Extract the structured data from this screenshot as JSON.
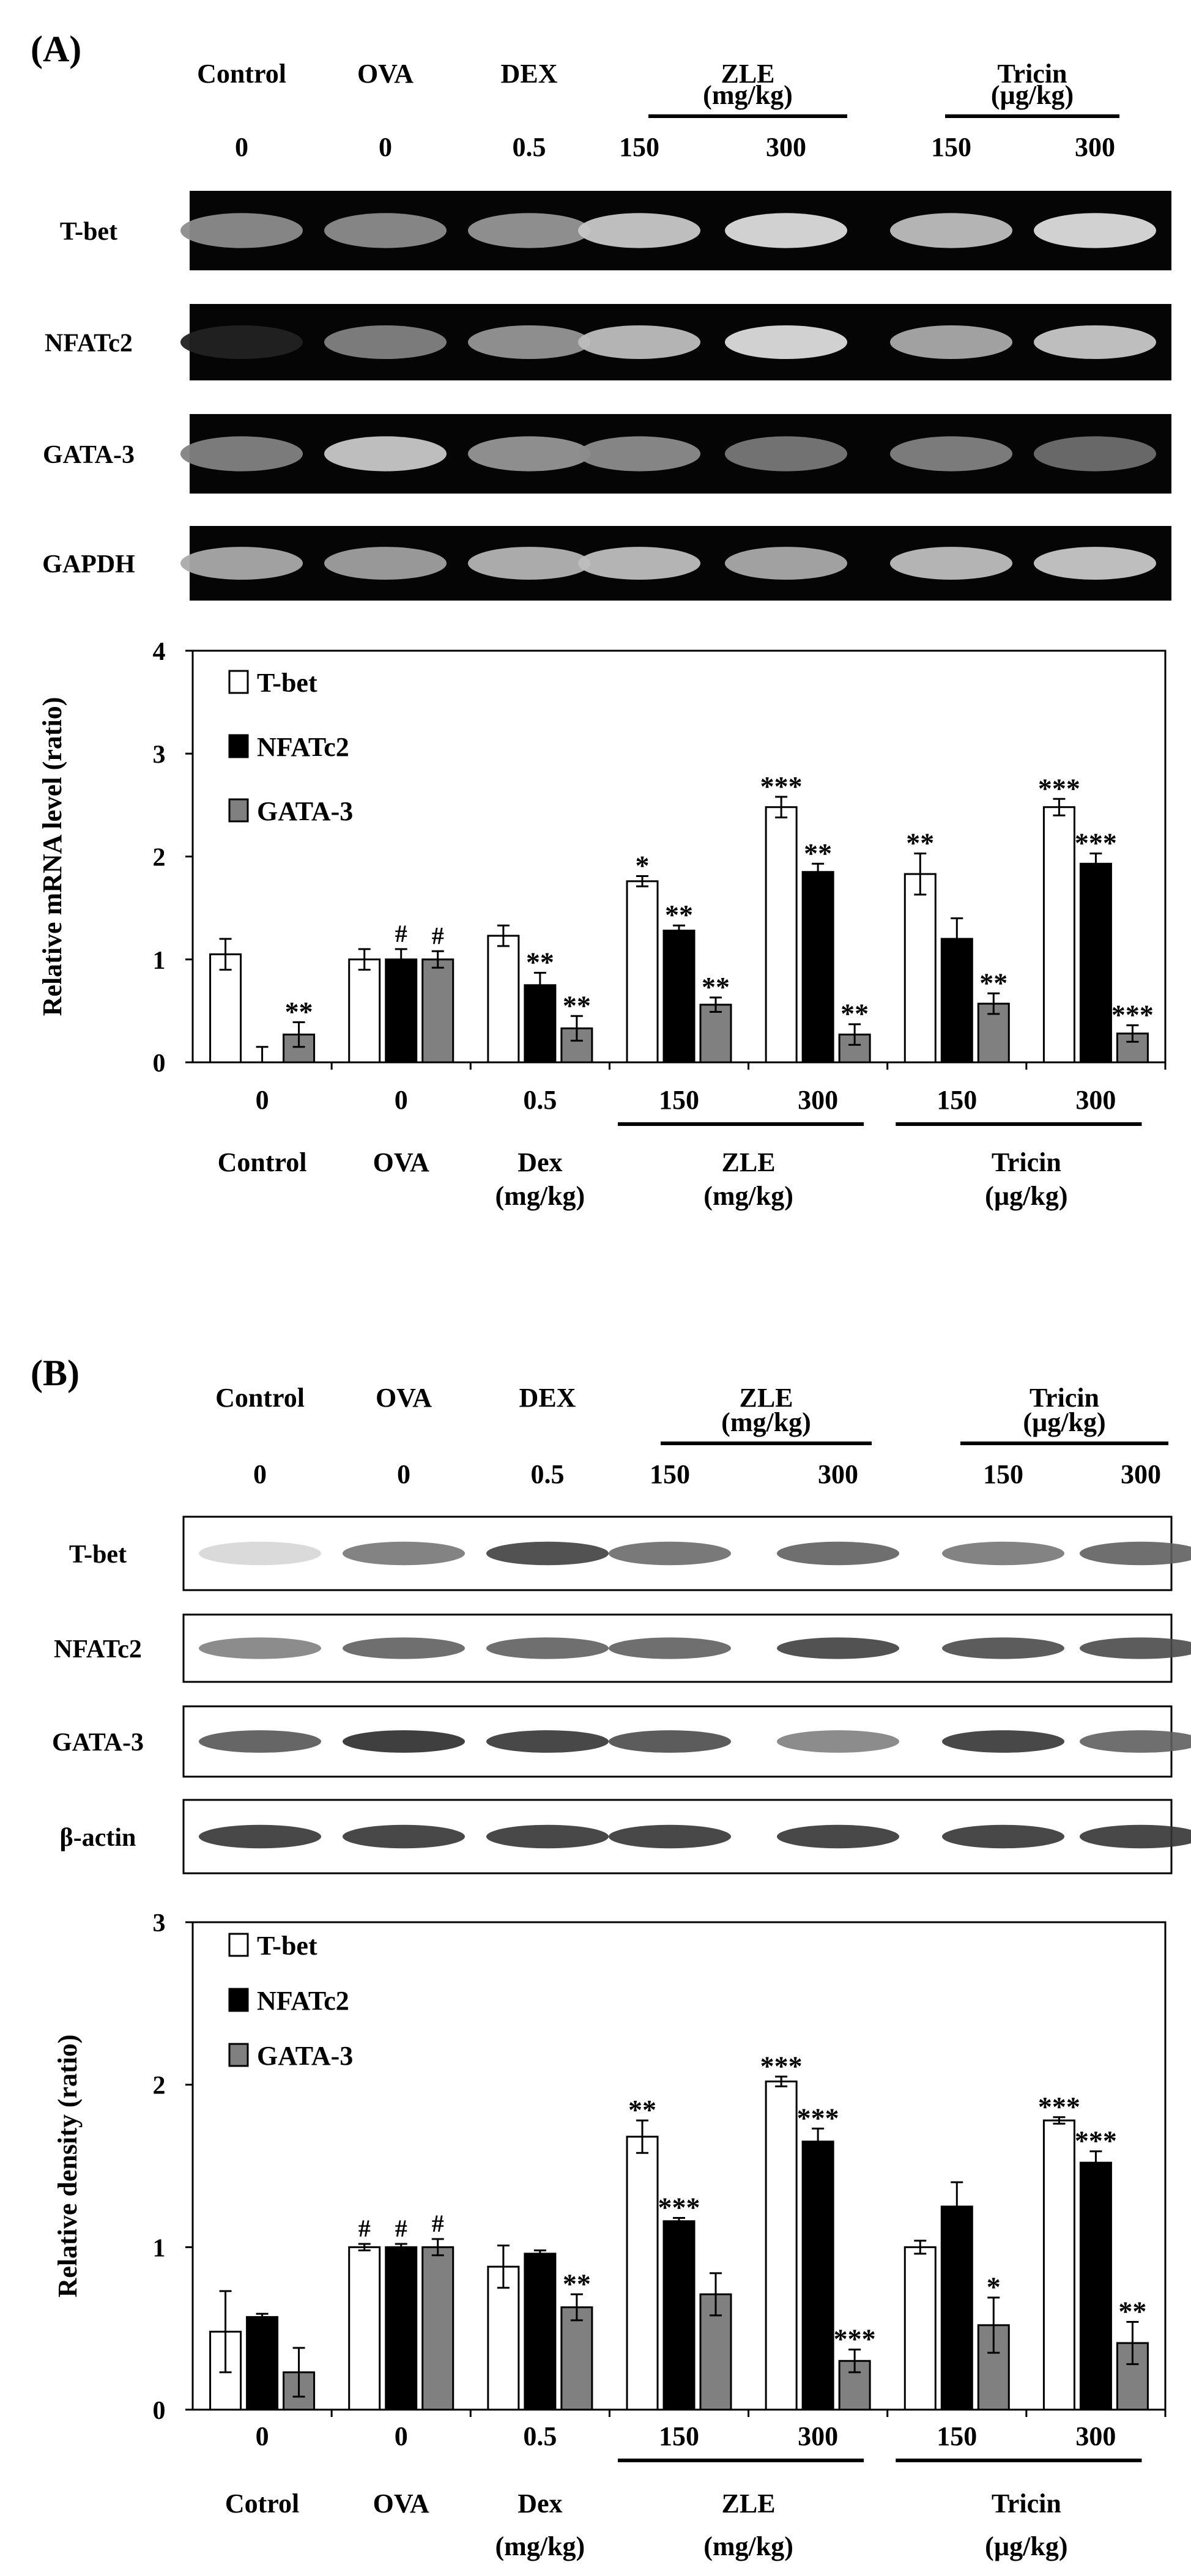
{
  "panels": [
    {
      "panel_label": "(A)",
      "blot_type": "gel",
      "header": {
        "groups": [
          "Control",
          "OVA",
          "DEX"
        ],
        "brackets": [
          {
            "line1": "ZLE",
            "line2": "(mg/kg)"
          },
          {
            "line1": "Tricin",
            "line2": "(µg/kg)"
          }
        ],
        "doses": [
          "0",
          "0",
          "0.5",
          "150",
          "300",
          "150",
          "300"
        ]
      },
      "blots": [
        {
          "label": "T-bet",
          "intensity": [
            0.55,
            0.55,
            0.6,
            0.85,
            0.95,
            0.8,
            0.95
          ]
        },
        {
          "label": "NFATc2",
          "intensity": [
            0.02,
            0.5,
            0.6,
            0.8,
            0.95,
            0.7,
            0.85
          ]
        },
        {
          "label": "GATA-3",
          "intensity": [
            0.5,
            0.85,
            0.6,
            0.55,
            0.45,
            0.5,
            0.4
          ]
        },
        {
          "label": "GAPDH",
          "intensity": [
            0.7,
            0.65,
            0.75,
            0.8,
            0.7,
            0.8,
            0.85
          ]
        }
      ],
      "chart_data": {
        "type": "bar",
        "ylabel": "Relative mRNA level (ratio)",
        "ylim": [
          0,
          4
        ],
        "yticks": [
          "0",
          "1",
          "2",
          "3",
          "4"
        ],
        "doses": [
          "0",
          "0",
          "0.5",
          "150",
          "300",
          "150",
          "300"
        ],
        "groups": [
          {
            "line1": "Control",
            "line2": ""
          },
          {
            "line1": "OVA",
            "line2": ""
          },
          {
            "line1": "Dex",
            "line2": "(mg/kg)"
          }
        ],
        "brackets": [
          {
            "line1": "ZLE",
            "line2": "(mg/kg)"
          },
          {
            "line1": "Tricin",
            "line2": "(µg/kg)"
          }
        ],
        "legend_position": "top-left",
        "series": [
          {
            "name": "T-bet",
            "color": "#ffffff",
            "values": [
              1.05,
              1.0,
              1.23,
              1.76,
              2.48,
              1.83,
              2.48
            ],
            "errors": [
              0.15,
              0.1,
              0.1,
              0.05,
              0.1,
              0.2,
              0.08
            ],
            "marks": [
              "",
              "",
              "",
              "*",
              "***",
              "**",
              "***"
            ]
          },
          {
            "name": "NFATc2",
            "color": "#000000",
            "values": [
              0.0,
              1.0,
              0.75,
              1.28,
              1.85,
              1.2,
              1.93
            ],
            "errors": [
              0.15,
              0.1,
              0.12,
              0.05,
              0.08,
              0.2,
              0.1
            ],
            "marks": [
              "",
              "#",
              "**",
              "**",
              "**",
              "",
              "***"
            ]
          },
          {
            "name": "GATA-3",
            "color": "#808080",
            "values": [
              0.27,
              1.0,
              0.33,
              0.56,
              0.27,
              0.57,
              0.28
            ],
            "errors": [
              0.12,
              0.08,
              0.12,
              0.07,
              0.1,
              0.1,
              0.08
            ],
            "marks": [
              "**",
              "#",
              "**",
              "**",
              "**",
              "**",
              "***"
            ]
          }
        ]
      }
    },
    {
      "panel_label": "(B)",
      "blot_type": "western",
      "header": {
        "groups": [
          "Control",
          "OVA",
          "DEX"
        ],
        "brackets": [
          {
            "line1": "ZLE",
            "line2": "(mg/kg)"
          },
          {
            "line1": "Tricin",
            "line2": "(µg/kg)"
          }
        ],
        "doses": [
          "0",
          "0",
          "0.5",
          "150",
          "300",
          "150",
          "300"
        ]
      },
      "blots": [
        {
          "label": "T-bet",
          "intensity": [
            0.1,
            0.55,
            0.8,
            0.6,
            0.65,
            0.55,
            0.65
          ]
        },
        {
          "label": "NFATc2",
          "intensity": [
            0.5,
            0.65,
            0.65,
            0.65,
            0.8,
            0.75,
            0.75
          ]
        },
        {
          "label": "GATA-3",
          "intensity": [
            0.7,
            0.9,
            0.85,
            0.75,
            0.5,
            0.85,
            0.65
          ]
        },
        {
          "label": "β-actin",
          "intensity": [
            0.85,
            0.85,
            0.85,
            0.85,
            0.85,
            0.85,
            0.85
          ]
        }
      ],
      "chart_data": {
        "type": "bar",
        "ylabel": "Relative density (ratio)",
        "ylim": [
          0,
          3
        ],
        "yticks": [
          "0",
          "1",
          "2",
          "3"
        ],
        "doses": [
          "0",
          "0",
          "0.5",
          "150",
          "300",
          "150",
          "300"
        ],
        "groups": [
          {
            "line1": "Cotrol",
            "line2": ""
          },
          {
            "line1": "OVA",
            "line2": ""
          },
          {
            "line1": "Dex",
            "line2": "(mg/kg)"
          }
        ],
        "brackets": [
          {
            "line1": "ZLE",
            "line2": "(mg/kg)"
          },
          {
            "line1": "Tricin",
            "line2": "(µg/kg)"
          }
        ],
        "legend_position": "top-left",
        "series": [
          {
            "name": "T-bet",
            "color": "#ffffff",
            "values": [
              0.48,
              1.0,
              0.88,
              1.68,
              2.02,
              1.0,
              1.78
            ],
            "errors": [
              0.25,
              0.02,
              0.13,
              0.1,
              0.03,
              0.04,
              0.02
            ],
            "marks": [
              "",
              "#",
              "",
              "**",
              "***",
              "",
              "***"
            ]
          },
          {
            "name": "NFATc2",
            "color": "#000000",
            "values": [
              0.57,
              1.0,
              0.96,
              1.16,
              1.65,
              1.25,
              1.52
            ],
            "errors": [
              0.02,
              0.02,
              0.02,
              0.02,
              0.08,
              0.15,
              0.07
            ],
            "marks": [
              "",
              "#",
              "",
              "***",
              "***",
              "",
              "***"
            ]
          },
          {
            "name": "GATA-3",
            "color": "#808080",
            "values": [
              0.23,
              1.0,
              0.63,
              0.71,
              0.3,
              0.52,
              0.41
            ],
            "errors": [
              0.15,
              0.05,
              0.08,
              0.13,
              0.07,
              0.17,
              0.13
            ],
            "marks": [
              "",
              "#",
              "**",
              "",
              "***",
              "*",
              "**"
            ]
          }
        ]
      }
    }
  ]
}
